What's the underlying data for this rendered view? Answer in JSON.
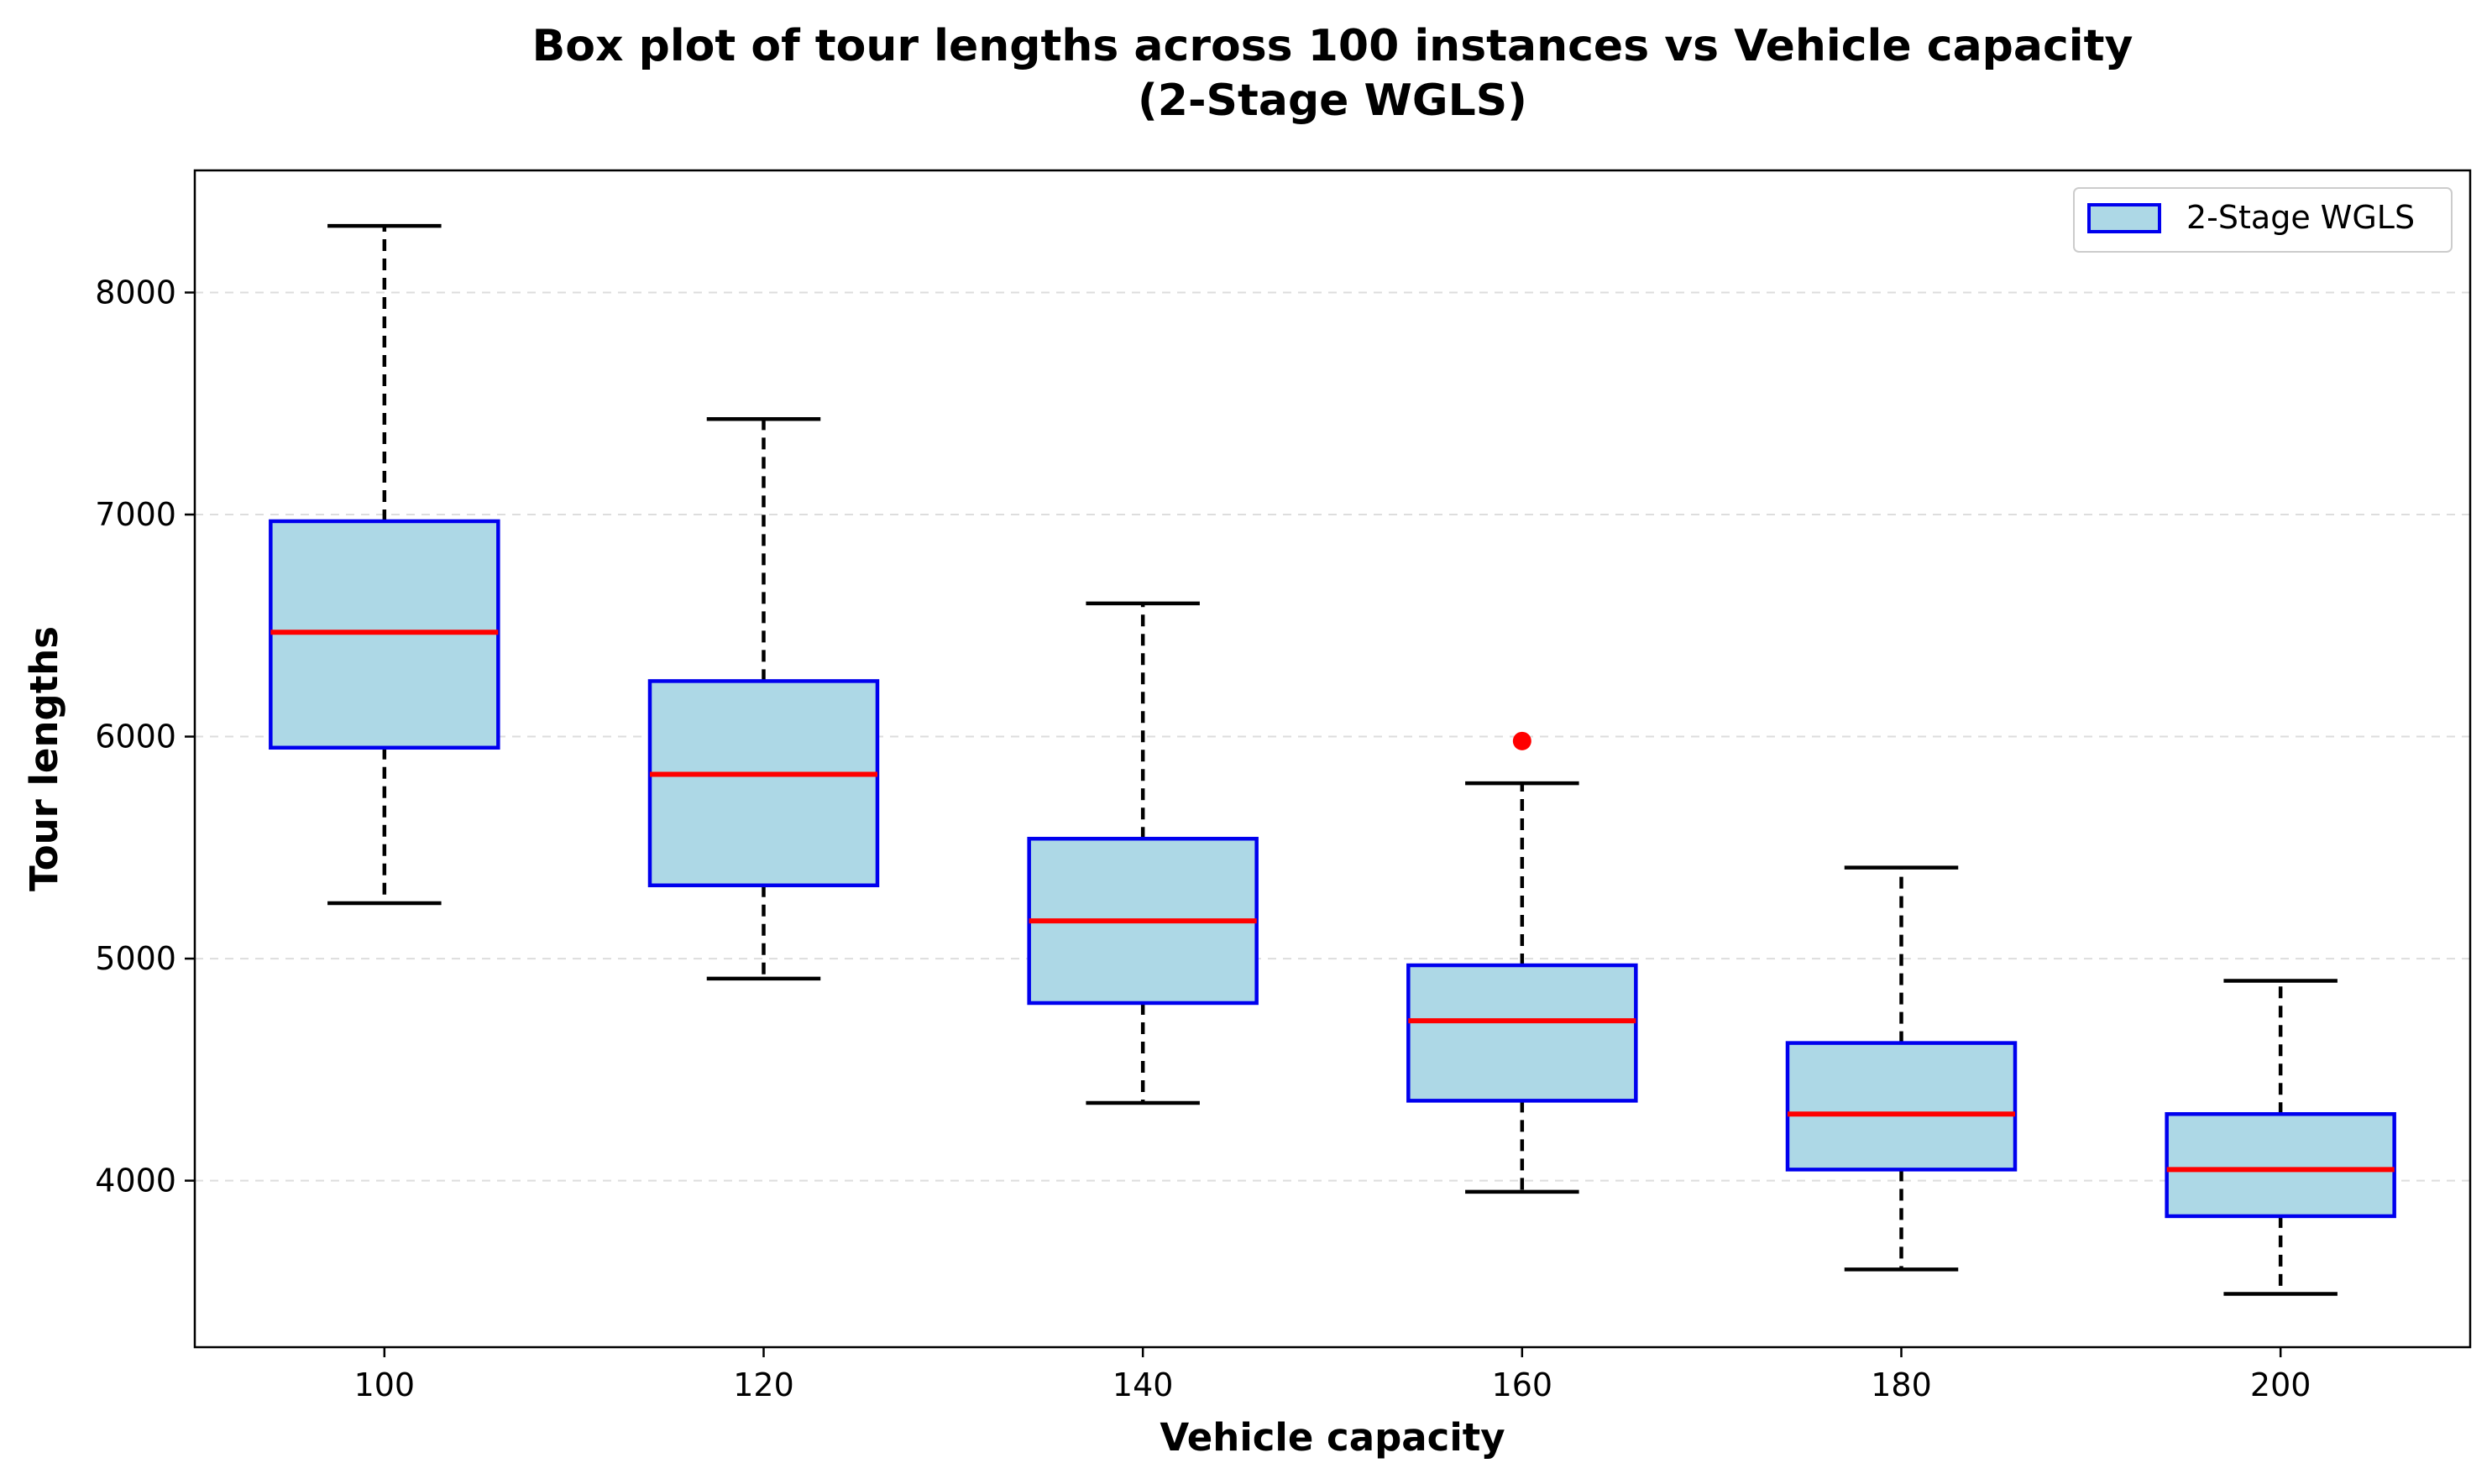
{
  "chart_data": {
    "type": "box",
    "title": "Box plot of tour lengths across 100 instances vs Vehicle capacity",
    "subtitle": "(2-Stage WGLS)",
    "xlabel": "Vehicle capacity",
    "ylabel": "Tour lengths",
    "categories": [
      "100",
      "120",
      "140",
      "160",
      "180",
      "200"
    ],
    "x_values": [
      100,
      120,
      140,
      160,
      180,
      200
    ],
    "xlim": [
      90,
      210
    ],
    "ylim": [
      3250,
      8550
    ],
    "yticks": [
      4000,
      5000,
      6000,
      7000,
      8000
    ],
    "ytick_labels": [
      "4000",
      "5000",
      "6000",
      "7000",
      "8000"
    ],
    "grid": {
      "y": true,
      "x": false,
      "style": "dashed"
    },
    "legend": {
      "position": "upper right",
      "entries": [
        "2-Stage WGLS"
      ]
    },
    "series": [
      {
        "name": "2-Stage WGLS",
        "boxes": [
          {
            "x": 100,
            "whisker_low": 5250,
            "q1": 5950,
            "median": 6470,
            "q3": 6970,
            "whisker_high": 8300,
            "outliers": []
          },
          {
            "x": 120,
            "whisker_low": 4910,
            "q1": 5330,
            "median": 5830,
            "q3": 6250,
            "whisker_high": 7430,
            "outliers": []
          },
          {
            "x": 140,
            "whisker_low": 4350,
            "q1": 4800,
            "median": 5170,
            "q3": 5540,
            "whisker_high": 6600,
            "outliers": []
          },
          {
            "x": 160,
            "whisker_low": 3950,
            "q1": 4360,
            "median": 4720,
            "q3": 4970,
            "whisker_high": 5790,
            "outliers": [
              5980
            ]
          },
          {
            "x": 180,
            "whisker_low": 3600,
            "q1": 4050,
            "median": 4300,
            "q3": 4620,
            "whisker_high": 5410,
            "outliers": []
          },
          {
            "x": 200,
            "whisker_low": 3490,
            "q1": 3840,
            "median": 4050,
            "q3": 4300,
            "whisker_high": 4900,
            "outliers": []
          }
        ]
      }
    ],
    "colors": {
      "box_fill": "#add8e6",
      "box_edge": "#0000ee",
      "median": "#ff0000",
      "whisker": "#000000",
      "outlier": "#ff0000",
      "grid": "#dddddd"
    }
  }
}
